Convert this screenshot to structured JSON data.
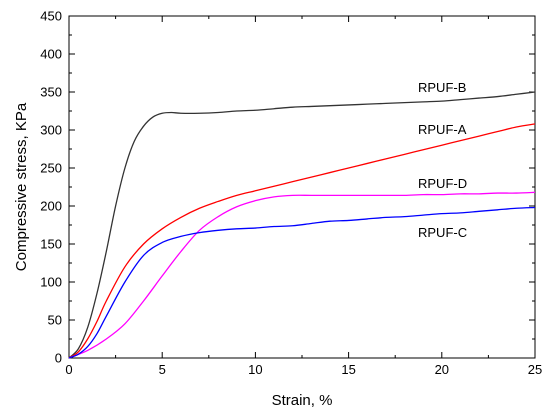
{
  "chart_data": {
    "type": "line",
    "xlabel": "Strain, %",
    "ylabel": "Compressive stress, KPa",
    "xlim": [
      0,
      25
    ],
    "ylim": [
      0,
      450
    ],
    "xticks": [
      0,
      5,
      10,
      15,
      20,
      25
    ],
    "yticks": [
      0,
      50,
      100,
      150,
      200,
      250,
      300,
      350,
      400,
      450
    ],
    "grid": false,
    "legend": "labels next to curves",
    "series": [
      {
        "name": "RPUF-B",
        "color": "#333333",
        "x": [
          0,
          0.5,
          1,
          1.5,
          2,
          2.5,
          3,
          3.5,
          4,
          4.5,
          5,
          5.5,
          6,
          7,
          8,
          9,
          10,
          11,
          12,
          13,
          14,
          15,
          16,
          17,
          18,
          19,
          20,
          21,
          22,
          23,
          24,
          25
        ],
        "values": [
          0,
          12,
          40,
          85,
          140,
          200,
          250,
          285,
          305,
          317,
          322,
          323,
          322,
          322,
          323,
          325,
          326,
          328,
          330,
          331,
          332,
          333,
          334,
          335,
          336,
          337,
          338,
          340,
          342,
          344,
          347,
          350
        ]
      },
      {
        "name": "RPUF-A",
        "color": "#ff0000",
        "x": [
          0,
          0.5,
          1,
          1.5,
          2,
          3,
          4,
          5,
          6,
          7,
          8,
          9,
          10,
          11,
          12,
          13,
          14,
          15,
          16,
          17,
          18,
          19,
          20,
          21,
          22,
          23,
          24,
          25
        ],
        "values": [
          0,
          8,
          25,
          48,
          75,
          120,
          150,
          170,
          185,
          197,
          206,
          214,
          220,
          226,
          232,
          238,
          244,
          250,
          256,
          262,
          268,
          274,
          280,
          286,
          292,
          298,
          304,
          308
        ]
      },
      {
        "name": "RPUF-D",
        "color": "#ff00ff",
        "x": [
          0,
          1,
          2,
          3,
          4,
          5,
          6,
          7,
          8,
          9,
          10,
          11,
          12,
          13,
          14,
          15,
          16,
          17,
          18,
          19,
          20,
          21,
          22,
          23,
          24,
          25
        ],
        "values": [
          0,
          10,
          25,
          45,
          75,
          108,
          140,
          168,
          186,
          199,
          207,
          212,
          214,
          214,
          214,
          214,
          214,
          214,
          214,
          215,
          215,
          216,
          216,
          217,
          217,
          218
        ]
      },
      {
        "name": "RPUF-C",
        "color": "#0000ff",
        "x": [
          0,
          0.5,
          1,
          1.5,
          2,
          3,
          4,
          5,
          6,
          7,
          8,
          9,
          10,
          11,
          12,
          13,
          14,
          15,
          16,
          17,
          18,
          19,
          20,
          21,
          22,
          23,
          24,
          25
        ],
        "values": [
          0,
          5,
          15,
          32,
          55,
          100,
          135,
          152,
          160,
          165,
          168,
          170,
          171,
          173,
          174,
          177,
          180,
          181,
          183,
          185,
          186,
          188,
          190,
          191,
          193,
          195,
          197,
          198
        ]
      }
    ]
  }
}
